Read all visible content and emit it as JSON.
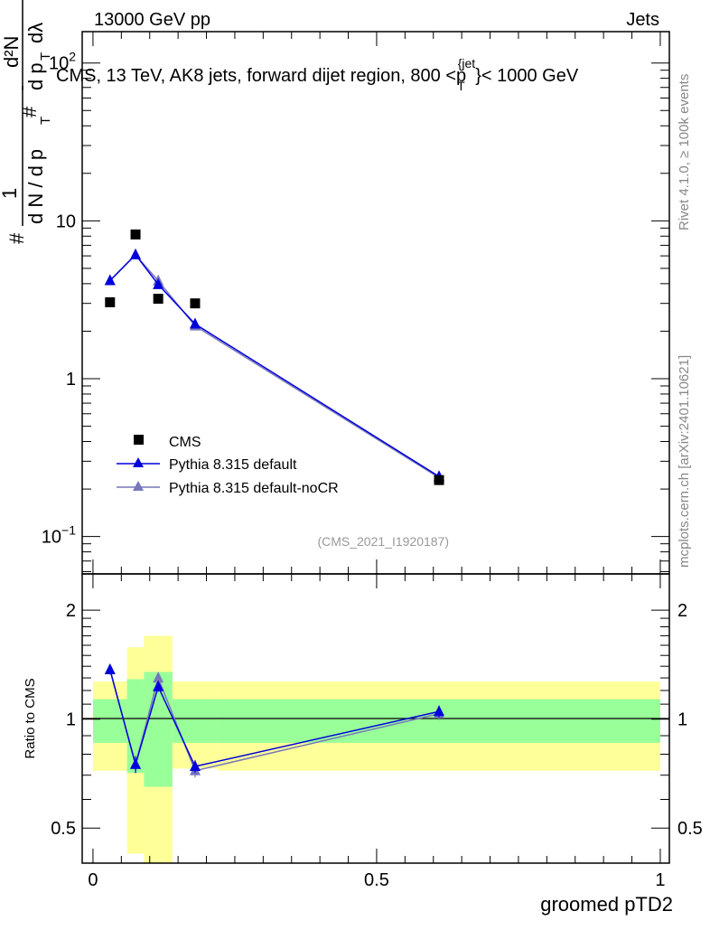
{
  "header": {
    "left": "13000 GeV pp",
    "right": "Jets"
  },
  "side_labels": {
    "rivet": "Rivet 4.1.0, ≥ 100k events",
    "mcplots": "mcplots.cern.ch [arXiv:2401.10621]"
  },
  "colors": {
    "cms": "#000000",
    "default": "#0000dd",
    "nocr": "#7777bb",
    "band_yellow": "#ffff99",
    "band_green": "#99ff99"
  },
  "chart_data": [
    {
      "type": "scatter",
      "title": "CMS, 13 TeV, AK8 jets, forward dijet region, 800 <p_T^{jet}< 1000 GeV",
      "title_main": "CMS, 13 TeV, AK8 jets, forward dijet region, 800 <p",
      "title_sup": "{jet",
      "title_sub": "T",
      "title_end": "}< 1000 GeV",
      "ylabel": "1/(dN/dp_T) d²N/(dp_T dλ)",
      "ylabel_parts": {
        "hash1": "#",
        "one": "1",
        "den": "d N / d p",
        "sub": "T",
        "hash2": "#",
        "num": "d²N",
        "den2": "d p",
        "den2_end": "dλ"
      },
      "yscale": "log",
      "ylim": [
        0.058,
        158
      ],
      "xlim": [
        -0.019,
        1.016
      ],
      "yticks": [
        {
          "v": 0.1,
          "base": "10",
          "exp": "−1"
        },
        {
          "v": 1,
          "base": "1",
          "exp": ""
        },
        {
          "v": 10,
          "base": "10",
          "exp": ""
        },
        {
          "v": 100,
          "base": "10",
          "exp": "2"
        }
      ],
      "watermark": "(CMS_2021_I1920187)",
      "legend_position": "bottom-left",
      "x": [
        0.03,
        0.075,
        0.115,
        0.18,
        0.61
      ],
      "series": [
        {
          "name": "CMS",
          "values": [
            3.05,
            8.2,
            3.21,
            3.0,
            0.228
          ],
          "marker": "square"
        },
        {
          "name": "Pythia 8.315 default",
          "values": [
            4.18,
            6.1,
            3.95,
            2.22,
            0.24
          ],
          "marker": "triangle"
        },
        {
          "name": "Pythia 8.315 default-noCR",
          "values": [
            4.18,
            6.1,
            4.17,
            2.16,
            0.236
          ],
          "marker": "triangle"
        }
      ]
    },
    {
      "type": "line",
      "ylabel": "Ratio to CMS",
      "xlabel": "groomed pTD2",
      "yscale": "log",
      "ylim": [
        0.4,
        2.52
      ],
      "xlim": [
        -0.019,
        1.016
      ],
      "yticks": [
        {
          "v": 0.5,
          "label": "0.5"
        },
        {
          "v": 1,
          "label": "1"
        },
        {
          "v": 2,
          "label": "2"
        }
      ],
      "xticks": [
        {
          "v": 0,
          "label": "0"
        },
        {
          "v": 0.5,
          "label": "0.5"
        },
        {
          "v": 1,
          "label": "1"
        }
      ],
      "bin_edges": [
        0,
        0.06,
        0.09,
        0.14,
        0.22,
        1.0
      ],
      "band_total": [
        [
          0.72,
          1.27
        ],
        [
          0.425,
          1.58
        ],
        [
          0.39,
          1.7
        ],
        [
          0.73,
          1.27
        ],
        [
          0.72,
          1.27
        ]
      ],
      "band_stat": [
        [
          0.86,
          1.135
        ],
        [
          0.71,
          1.29
        ],
        [
          0.65,
          1.35
        ],
        [
          0.86,
          1.135
        ],
        [
          0.86,
          1.135
        ]
      ],
      "x": [
        0.03,
        0.075,
        0.115,
        0.18,
        0.61
      ],
      "series": [
        {
          "name": "Pythia 8.315 default",
          "values": [
            1.37,
            0.75,
            1.23,
            0.74,
            1.05
          ],
          "err": [
            0.04,
            0.04,
            0.04,
            0.03,
            0.04
          ]
        },
        {
          "name": "Pythia 8.315 default-noCR",
          "values": [
            1.37,
            0.75,
            1.3,
            0.72,
            1.035
          ],
          "err": [
            0.04,
            0.04,
            0.04,
            0.03,
            0.04
          ]
        }
      ]
    }
  ]
}
